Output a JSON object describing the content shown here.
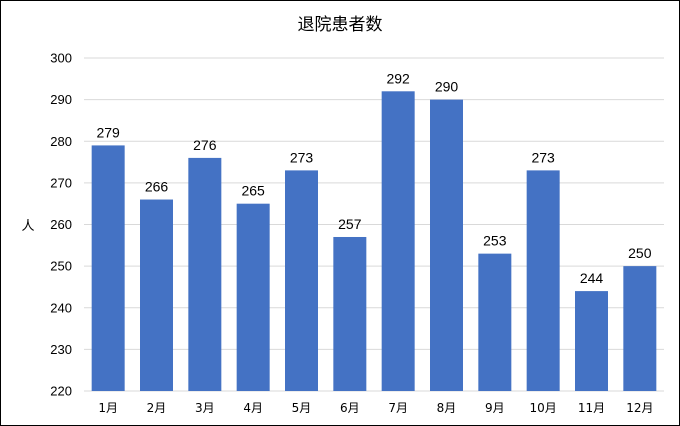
{
  "chart_data": {
    "type": "bar",
    "title": "退院患者数",
    "xlabel": "",
    "ylabel": "人",
    "categories": [
      "1月",
      "2月",
      "3月",
      "4月",
      "5月",
      "6月",
      "7月",
      "8月",
      "9月",
      "10月",
      "11月",
      "12月"
    ],
    "values": [
      279,
      266,
      276,
      265,
      273,
      257,
      292,
      290,
      253,
      273,
      244,
      250
    ],
    "ylim": [
      220,
      300
    ],
    "yticks": [
      220,
      230,
      240,
      250,
      260,
      270,
      280,
      290,
      300
    ],
    "grid": true,
    "legend": "none",
    "colors": {
      "bar": "#4472C4",
      "grid": "#D9D9D9",
      "text": "#000000"
    }
  }
}
